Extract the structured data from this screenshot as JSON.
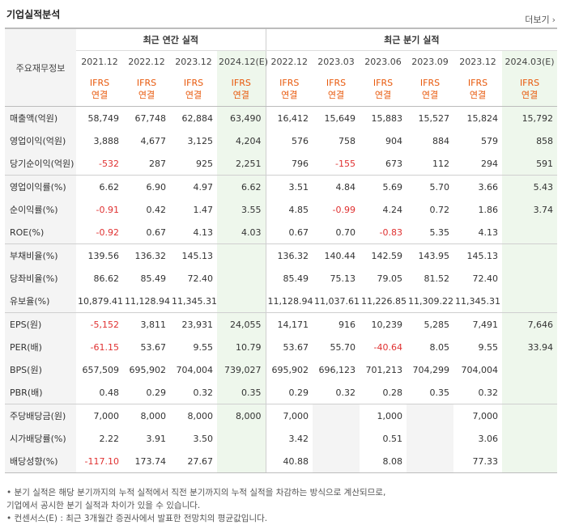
{
  "title": "기업실적분석",
  "more_label": "더보기",
  "header": {
    "row_label": "주요재무정보",
    "annual_group": "최근 연간 실적",
    "quarter_group": "최근 분기 실적",
    "periods": [
      "2021.12",
      "2022.12",
      "2023.12",
      "2024.12(E)",
      "2022.12",
      "2023.03",
      "2023.06",
      "2023.09",
      "2023.12",
      "2024.03(E)"
    ],
    "basis": [
      "IFRS 연결",
      "IFRS 연결",
      "IFRS 연결",
      "IFRS 연결",
      "IFRS 연결",
      "IFRS 연결",
      "IFRS 연결",
      "IFRS 연결",
      "IFRS 연결",
      "IFRS 연결"
    ]
  },
  "rows": [
    {
      "label": "매출액(억원)",
      "values": [
        "58,749",
        "67,748",
        "62,884",
        "63,490",
        "16,412",
        "15,649",
        "15,883",
        "15,527",
        "15,824",
        "15,792"
      ]
    },
    {
      "label": "영업이익(억원)",
      "values": [
        "3,888",
        "4,677",
        "3,125",
        "4,204",
        "576",
        "758",
        "904",
        "884",
        "579",
        "858"
      ]
    },
    {
      "label": "당기순이익(억원)",
      "values": [
        "-532",
        "287",
        "925",
        "2,251",
        "796",
        "-155",
        "673",
        "112",
        "294",
        "591"
      ]
    },
    {
      "label": "영업이익률(%)",
      "values": [
        "6.62",
        "6.90",
        "4.97",
        "6.62",
        "3.51",
        "4.84",
        "5.69",
        "5.70",
        "3.66",
        "5.43"
      ]
    },
    {
      "label": "순이익률(%)",
      "values": [
        "-0.91",
        "0.42",
        "1.47",
        "3.55",
        "4.85",
        "-0.99",
        "4.24",
        "0.72",
        "1.86",
        "3.74"
      ]
    },
    {
      "label": "ROE(%)",
      "values": [
        "-0.92",
        "0.67",
        "4.13",
        "4.03",
        "0.67",
        "0.70",
        "-0.83",
        "5.35",
        "4.13",
        ""
      ]
    },
    {
      "label": "부채비율(%)",
      "values": [
        "139.56",
        "136.32",
        "145.13",
        "",
        "136.32",
        "140.44",
        "142.59",
        "143.95",
        "145.13",
        ""
      ]
    },
    {
      "label": "당좌비율(%)",
      "values": [
        "86.62",
        "85.49",
        "72.40",
        "",
        "85.49",
        "75.13",
        "79.05",
        "81.52",
        "72.40",
        ""
      ]
    },
    {
      "label": "유보율(%)",
      "values": [
        "10,879.41",
        "11,128.94",
        "11,345.31",
        "",
        "11,128.94",
        "11,037.61",
        "11,226.85",
        "11,309.22",
        "11,345.31",
        ""
      ]
    },
    {
      "label": "EPS(원)",
      "values": [
        "-5,152",
        "3,811",
        "23,931",
        "24,055",
        "14,171",
        "916",
        "10,239",
        "5,285",
        "7,491",
        "7,646"
      ]
    },
    {
      "label": "PER(배)",
      "values": [
        "-61.15",
        "53.67",
        "9.55",
        "10.79",
        "53.67",
        "55.70",
        "-40.64",
        "8.05",
        "9.55",
        "33.94"
      ]
    },
    {
      "label": "BPS(원)",
      "values": [
        "657,509",
        "695,902",
        "704,004",
        "739,027",
        "695,902",
        "696,123",
        "701,213",
        "704,299",
        "704,004",
        ""
      ]
    },
    {
      "label": "PBR(배)",
      "values": [
        "0.48",
        "0.29",
        "0.32",
        "0.35",
        "0.29",
        "0.32",
        "0.28",
        "0.35",
        "0.32",
        ""
      ]
    },
    {
      "label": "주당배당금(원)",
      "values": [
        "7,000",
        "8,000",
        "8,000",
        "8,000",
        "7,000",
        "",
        "1,000",
        "",
        "7,000",
        ""
      ]
    },
    {
      "label": "시가배당률(%)",
      "values": [
        "2.22",
        "3.91",
        "3.50",
        "",
        "3.42",
        "",
        "0.51",
        "",
        "3.06",
        ""
      ]
    },
    {
      "label": "배당성향(%)",
      "values": [
        "-117.10",
        "173.74",
        "27.67",
        "",
        "40.88",
        "",
        "8.08",
        "",
        "77.33",
        ""
      ]
    }
  ],
  "notes": [
    "• 분기 실적은 해당 분기까지의 누적 실적에서 직전 분기까지의 누적 실적을 차감하는 방식으로 계산되므로,",
    "   기업에서 공시한 분기 실적과 차이가 있을 수 있습니다.",
    "• 컨센서스(E) : 최근 3개월간 증권사에서 발표한 전망치의 평균값입니다."
  ]
}
